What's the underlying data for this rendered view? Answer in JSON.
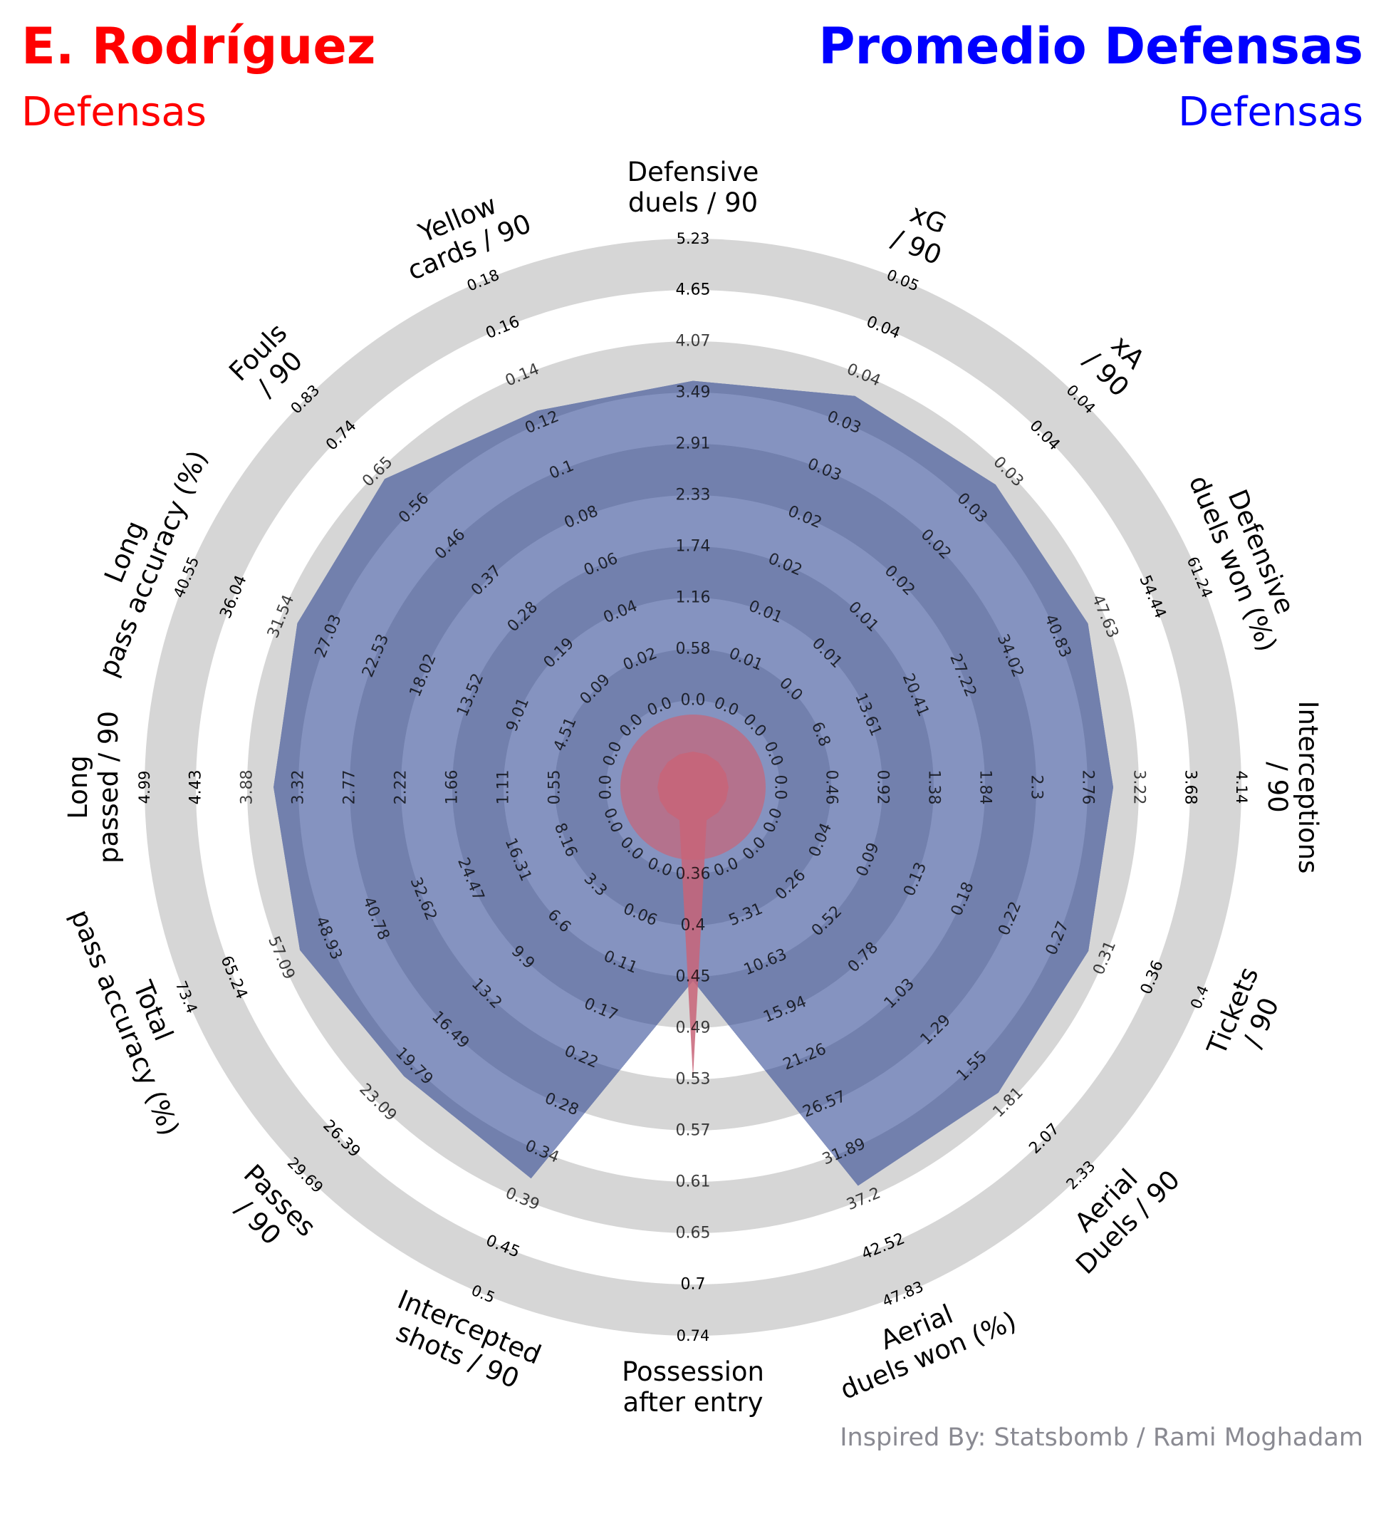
{
  "header": {
    "left_title": "E. Rodríguez",
    "left_subtitle": "Defensas",
    "right_title": "Promedio Defensas",
    "right_subtitle": "Defensas",
    "credit": "Inspired By: Statsbomb / Rami Moghadam"
  },
  "colors": {
    "left": "#ff0000",
    "right": "#0000ff",
    "credit": "#8a8a92",
    "ring": "#d6d6d6",
    "band_dark": "#7280ad",
    "band_light": "#8593c0",
    "player_fill": "#c86478",
    "tick_text": "#000000"
  },
  "chart_data": {
    "type": "radar",
    "title": "",
    "params": [
      {
        "label": "Defensive\nduels / 90",
        "ticks": [
          "0.0",
          "0.58",
          "1.16",
          "1.74",
          "2.33",
          "2.91",
          "3.49",
          "4.07",
          "4.65",
          "5.23"
        ]
      },
      {
        "label": "xG\n/ 90",
        "ticks": [
          "0.0",
          "0.01",
          "0.01",
          "0.02",
          "0.02",
          "0.03",
          "0.03",
          "0.04",
          "0.04",
          "0.05"
        ]
      },
      {
        "label": "xA\n/ 90",
        "ticks": [
          "0.0",
          "0.0",
          "0.01",
          "0.01",
          "0.02",
          "0.02",
          "0.03",
          "0.03",
          "0.04",
          "0.04"
        ]
      },
      {
        "label": "Defensive\nduels won (%)",
        "ticks": [
          "0.0",
          "6.8",
          "13.61",
          "20.41",
          "27.22",
          "34.02",
          "40.83",
          "47.63",
          "54.44",
          "61.24"
        ]
      },
      {
        "label": "Interceptions\n/ 90",
        "ticks": [
          "0.0",
          "0.46",
          "0.92",
          "1.38",
          "1.84",
          "2.3",
          "2.76",
          "3.22",
          "3.68",
          "4.14"
        ]
      },
      {
        "label": "Tickets\n/ 90",
        "ticks": [
          "0.0",
          "0.04",
          "0.09",
          "0.13",
          "0.18",
          "0.22",
          "0.27",
          "0.31",
          "0.36",
          "0.4"
        ]
      },
      {
        "label": "Aerial\nDuels / 90",
        "ticks": [
          "0.0",
          "0.26",
          "0.52",
          "0.78",
          "1.03",
          "1.29",
          "1.55",
          "1.81",
          "2.07",
          "2.33"
        ]
      },
      {
        "label": "Aerial\nduels won (%)",
        "ticks": [
          "0.0",
          "5.31",
          "10.63",
          "15.94",
          "21.26",
          "26.57",
          "31.89",
          "37.2",
          "42.52",
          "47.83"
        ]
      },
      {
        "label": "Possession\nafter entry",
        "ticks": [
          "0.36",
          "0.4",
          "0.45",
          "0.49",
          "0.53",
          "0.57",
          "0.61",
          "0.65",
          "0.7",
          "0.74"
        ]
      },
      {
        "label": "Intercepted\nshots / 90",
        "ticks": [
          "0.0",
          "0.06",
          "0.11",
          "0.17",
          "0.22",
          "0.28",
          "0.34",
          "0.39",
          "0.45",
          "0.5"
        ]
      },
      {
        "label": "Passes\n/ 90",
        "ticks": [
          "0.0",
          "3.3",
          "6.6",
          "9.9",
          "13.2",
          "16.49",
          "19.79",
          "23.09",
          "26.39",
          "29.69"
        ]
      },
      {
        "label": "Total\npass accuracy (%)",
        "ticks": [
          "0.0",
          "8.16",
          "16.31",
          "24.47",
          "32.62",
          "40.78",
          "48.93",
          "57.09",
          "65.24",
          "73.4"
        ]
      },
      {
        "label": "Long\npassed / 90",
        "ticks": [
          "0.0",
          "0.55",
          "1.11",
          "1.66",
          "2.22",
          "2.77",
          "3.32",
          "3.88",
          "4.43",
          "4.99"
        ]
      },
      {
        "label": "Long\npass accuracy (%)",
        "ticks": [
          "0.0",
          "4.51",
          "9.01",
          "13.52",
          "18.02",
          "22.53",
          "27.03",
          "31.54",
          "36.04",
          "40.55"
        ]
      },
      {
        "label": "Fouls\n/ 90",
        "ticks": [
          "0.0",
          "0.09",
          "0.19",
          "0.28",
          "0.37",
          "0.46",
          "0.56",
          "0.65",
          "0.74",
          "0.83"
        ]
      },
      {
        "label": "Yellow\ncards / 90",
        "ticks": [
          "0.0",
          "0.02",
          "0.04",
          "0.06",
          "0.08",
          "0.1",
          "0.12",
          "0.14",
          "0.16",
          "0.18"
        ]
      }
    ],
    "series": [
      {
        "name": "Promedio Defensas",
        "values": [
          4.2,
          0.042,
          0.034,
          52,
          3.45,
          0.34,
          2.0,
          41.0,
          0.49,
          0.42,
          24.0,
          62.0,
          4.15,
          34.5,
          0.72,
          0.145
        ]
      },
      {
        "name": "E. Rodríguez",
        "values": [
          0,
          0,
          0,
          0,
          0,
          0,
          0,
          0,
          0.57,
          0,
          0,
          0,
          0,
          0,
          0,
          0
        ]
      }
    ]
  }
}
